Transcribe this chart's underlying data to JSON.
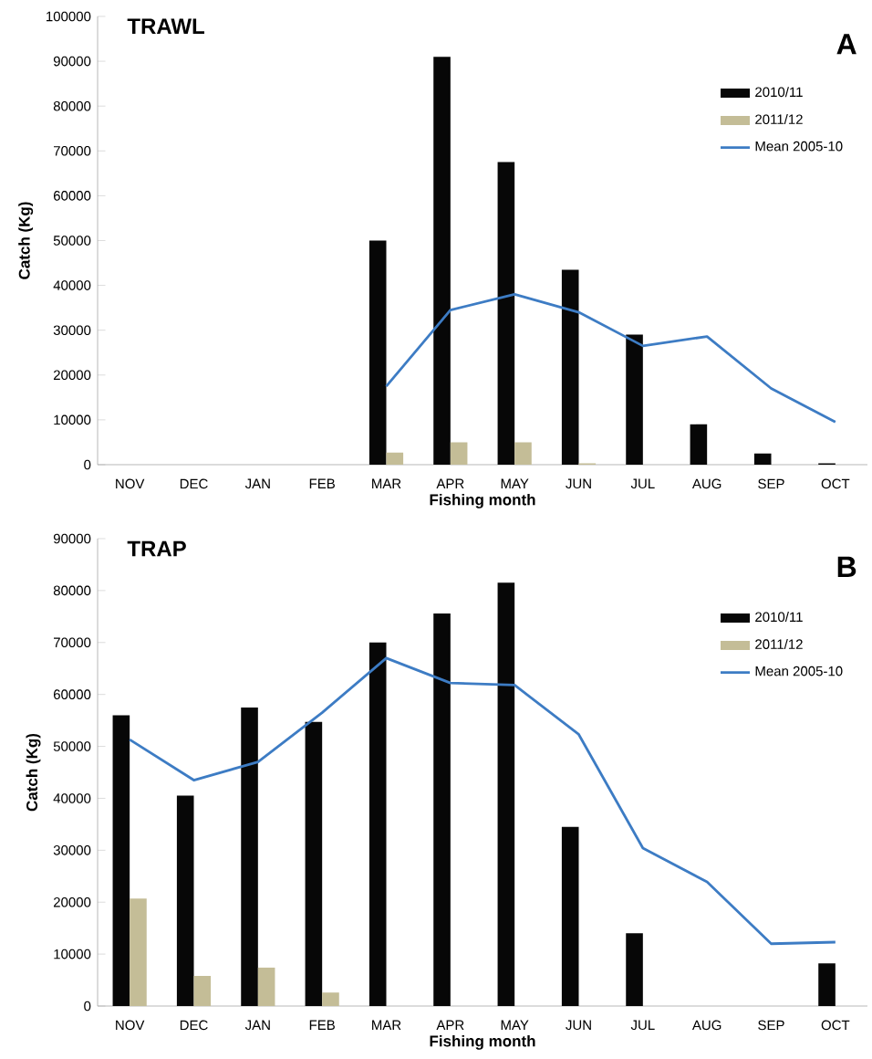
{
  "chart_data": [
    {
      "type": "bar",
      "title": "TRAWL",
      "xlabel": "Fishing month",
      "ylabel": "Catch (Kg)",
      "annotations": [
        "A"
      ],
      "categories": [
        "NOV",
        "DEC",
        "JAN",
        "FEB",
        "MAR",
        "APR",
        "MAY",
        "JUN",
        "JUL",
        "AUG",
        "SEP",
        "OCT"
      ],
      "series": [
        {
          "name": "2010/11",
          "color": "#070707",
          "values": [
            0,
            0,
            0,
            0,
            50000,
            91000,
            67500,
            43500,
            29000,
            9000,
            2500,
            300
          ]
        },
        {
          "name": "2011/12",
          "color": "#c4bd97",
          "values": [
            0,
            0,
            0,
            0,
            2700,
            5000,
            5000,
            300,
            0,
            0,
            0,
            0
          ]
        },
        {
          "name": "Mean 2005-10",
          "type": "line",
          "color": "#3d7cc4",
          "values": [
            null,
            null,
            null,
            null,
            17500,
            34500,
            38000,
            34000,
            26500,
            28600,
            17000,
            9500
          ]
        }
      ],
      "ylim": [
        0,
        100000
      ],
      "yticks": [
        0,
        10000,
        20000,
        30000,
        40000,
        50000,
        60000,
        70000,
        80000,
        90000,
        100000
      ],
      "grid": false,
      "legend": "top right",
      "marker": "none"
    },
    {
      "type": "bar",
      "title": "TRAP",
      "xlabel": "Fishing month",
      "ylabel": "Catch (Kg)",
      "annotations": [
        "B"
      ],
      "categories": [
        "NOV",
        "DEC",
        "JAN",
        "FEB",
        "MAR",
        "APR",
        "MAY",
        "JUN",
        "JUL",
        "AUG",
        "SEP",
        "OCT"
      ],
      "series": [
        {
          "name": "2010/11",
          "color": "#070707",
          "values": [
            56000,
            40500,
            57500,
            54700,
            70000,
            75600,
            81500,
            34500,
            14000,
            0,
            0,
            8200
          ]
        },
        {
          "name": "2011/12",
          "color": "#c4bd97",
          "values": [
            20700,
            5800,
            7400,
            2600,
            0,
            0,
            0,
            0,
            0,
            0,
            0,
            0
          ]
        },
        {
          "name": "Mean 2005-10",
          "type": "line",
          "color": "#3d7cc4",
          "values": [
            51300,
            43500,
            47000,
            56500,
            67000,
            62200,
            61800,
            52300,
            30400,
            23900,
            12000,
            12300
          ]
        }
      ],
      "ylim": [
        0,
        90000
      ],
      "yticks": [
        0,
        10000,
        20000,
        30000,
        40000,
        50000,
        60000,
        70000,
        80000,
        90000
      ],
      "grid": false,
      "legend": "top right",
      "marker": "none"
    }
  ]
}
